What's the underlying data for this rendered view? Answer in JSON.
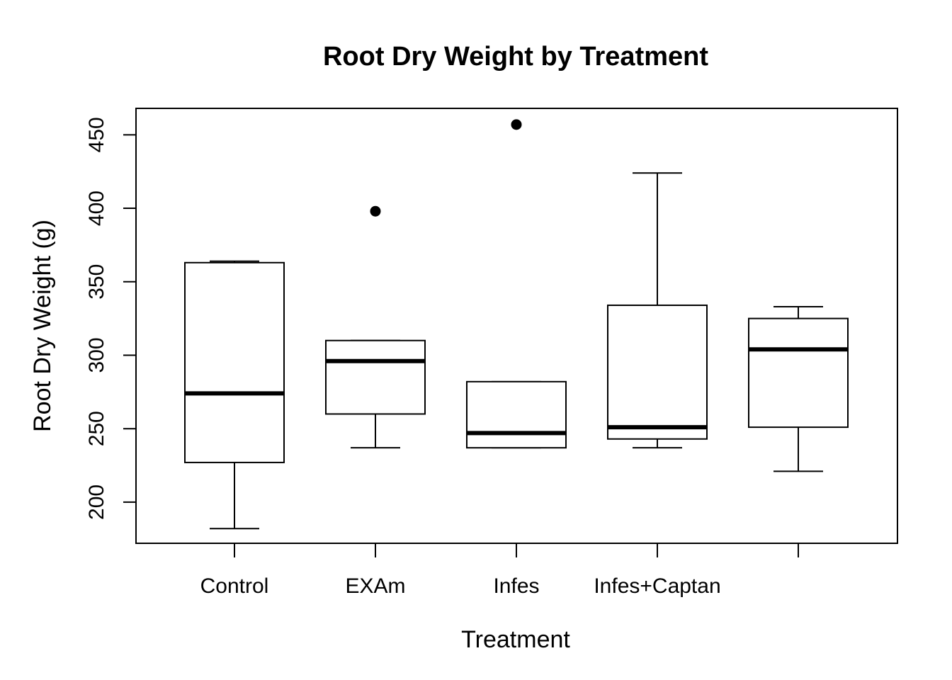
{
  "chart_data": {
    "type": "boxplot",
    "title": "Root Dry Weight by Treatment",
    "xlabel": "Treatment",
    "ylabel": "Root Dry Weight (g)",
    "ylim": [
      172,
      468
    ],
    "yticks": [
      200,
      250,
      300,
      350,
      400,
      450
    ],
    "categories": [
      "Control",
      "EXAm",
      "Infes",
      "Infes+Captan",
      ""
    ],
    "boxes": [
      {
        "whisker_low": 182,
        "q1": 227,
        "median": 274,
        "q3": 363,
        "whisker_high": 364,
        "outliers": []
      },
      {
        "whisker_low": 237,
        "q1": 260,
        "median": 296,
        "q3": 310,
        "whisker_high": 310,
        "outliers": [
          398
        ]
      },
      {
        "whisker_low": 237,
        "q1": 237,
        "median": 247,
        "q3": 282,
        "whisker_high": 282,
        "outliers": [
          457
        ]
      },
      {
        "whisker_low": 237,
        "q1": 243,
        "median": 251,
        "q3": 334,
        "whisker_high": 424,
        "outliers": []
      },
      {
        "whisker_low": 221,
        "q1": 251,
        "median": 304,
        "q3": 325,
        "whisker_high": 333,
        "outliers": []
      }
    ],
    "grid": false,
    "legend": "none"
  }
}
